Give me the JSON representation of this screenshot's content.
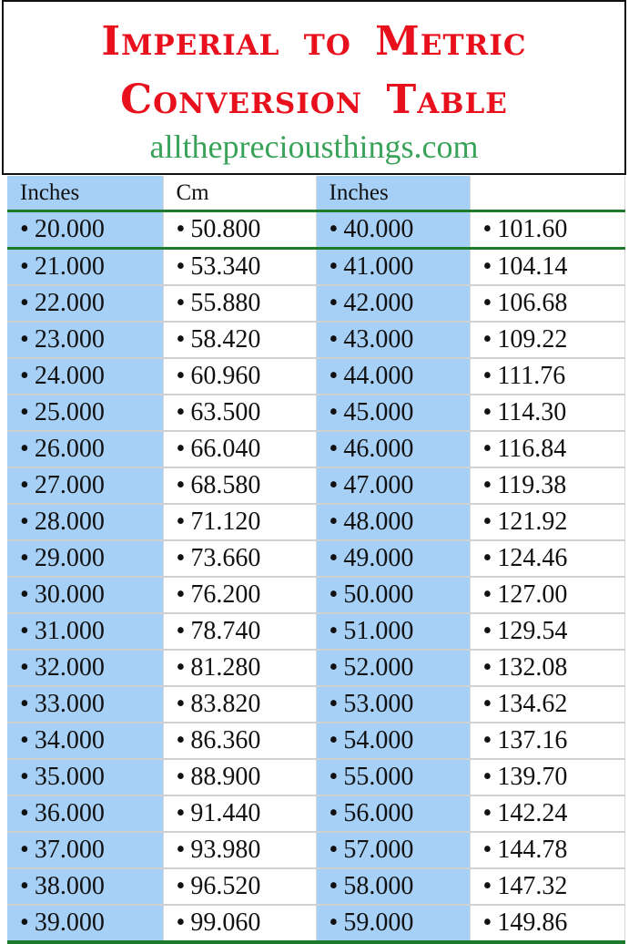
{
  "title": {
    "line1": "Imperial to Metric",
    "line2": "Conversion Table",
    "website": "allthepreciousthings.com"
  },
  "colors": {
    "title": "#e8101c",
    "website": "#3aa35a",
    "inches_bg": "#a7d0f7",
    "rule": "#1d7a2c"
  },
  "bullet": "•",
  "table": {
    "headers": [
      "Inches",
      "Cm",
      "Inches",
      ""
    ],
    "rows": [
      [
        "20.000",
        "50.800",
        "40.000",
        "101.60"
      ],
      [
        "21.000",
        "53.340",
        "41.000",
        "104.14"
      ],
      [
        "22.000",
        "55.880",
        "42.000",
        "106.68"
      ],
      [
        "23.000",
        "58.420",
        "43.000",
        "109.22"
      ],
      [
        "24.000",
        "60.960",
        "44.000",
        "111.76"
      ],
      [
        "25.000",
        "63.500",
        "45.000",
        "114.30"
      ],
      [
        "26.000",
        "66.040",
        "46.000",
        "116.84"
      ],
      [
        "27.000",
        "68.580",
        "47.000",
        "119.38"
      ],
      [
        "28.000",
        "71.120",
        "48.000",
        "121.92"
      ],
      [
        "29.000",
        "73.660",
        "49.000",
        "124.46"
      ],
      [
        "30.000",
        "76.200",
        "50.000",
        "127.00"
      ],
      [
        "31.000",
        "78.740",
        "51.000",
        "129.54"
      ],
      [
        "32.000",
        "81.280",
        "52.000",
        "132.08"
      ],
      [
        "33.000",
        "83.820",
        "53.000",
        "134.62"
      ],
      [
        "34.000",
        "86.360",
        "54.000",
        "137.16"
      ],
      [
        "35.000",
        "88.900",
        "55.000",
        "139.70"
      ],
      [
        "36.000",
        "91.440",
        "56.000",
        "142.24"
      ],
      [
        "37.000",
        "93.980",
        "57.000",
        "144.78"
      ],
      [
        "38.000",
        "96.520",
        "58.000",
        "147.32"
      ],
      [
        "39.000",
        "99.060",
        "59.000",
        "149.86"
      ]
    ]
  }
}
